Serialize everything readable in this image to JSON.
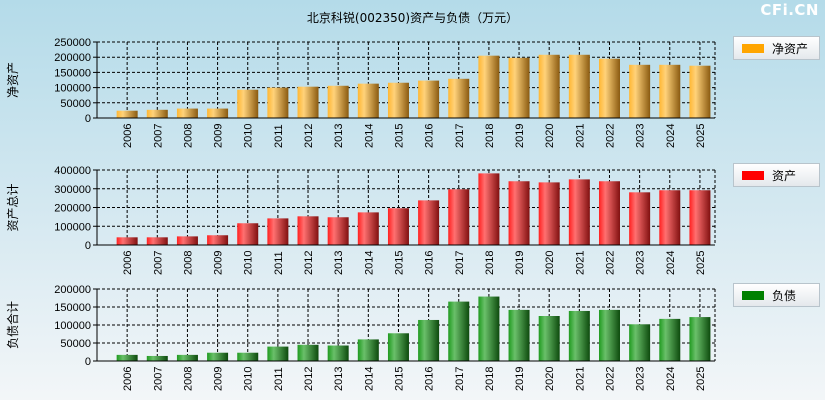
{
  "header": {
    "title": "北京科锐(002350)资产与负债（万元）",
    "watermark": "CFi.CN"
  },
  "colors": {
    "equity": "#ffa500",
    "assets": "#ff0000",
    "liabilities": "#008000"
  },
  "chart_data": [
    {
      "type": "bar",
      "title": "净资产",
      "ylabel": "净资产",
      "legend": "净资产",
      "legend_position": "right",
      "ylim": [
        0,
        250000
      ],
      "yticks": [
        0,
        50000,
        100000,
        150000,
        200000,
        250000
      ],
      "categories": [
        "2006",
        "2007",
        "2008",
        "2009",
        "2010",
        "2011",
        "2012",
        "2013",
        "2014",
        "2015",
        "2016",
        "2017",
        "2018",
        "2019",
        "2020",
        "2021",
        "2022",
        "2023",
        "2024",
        "2025"
      ],
      "values": [
        24000,
        27000,
        31000,
        31000,
        93000,
        100000,
        103000,
        106000,
        113000,
        116000,
        123000,
        129000,
        205000,
        198000,
        208000,
        208000,
        195000,
        175000,
        175000,
        172000
      ]
    },
    {
      "type": "bar",
      "title": "资产",
      "ylabel": "资产总计",
      "legend": "资产",
      "legend_position": "right",
      "ylim": [
        0,
        400000
      ],
      "yticks": [
        0,
        100000,
        200000,
        300000,
        400000
      ],
      "categories": [
        "2006",
        "2007",
        "2008",
        "2009",
        "2010",
        "2011",
        "2012",
        "2013",
        "2014",
        "2015",
        "2016",
        "2017",
        "2018",
        "2019",
        "2020",
        "2021",
        "2022",
        "2023",
        "2024",
        "2025"
      ],
      "values": [
        41000,
        41000,
        46000,
        52000,
        116000,
        142000,
        153000,
        148000,
        174000,
        196000,
        238000,
        297000,
        382000,
        340000,
        334000,
        350000,
        340000,
        281000,
        292000,
        292000
      ]
    },
    {
      "type": "bar",
      "title": "负债",
      "ylabel": "负债合计",
      "legend": "负债",
      "legend_position": "right",
      "ylim": [
        0,
        200000
      ],
      "yticks": [
        0,
        50000,
        100000,
        150000,
        200000
      ],
      "categories": [
        "2006",
        "2007",
        "2008",
        "2009",
        "2010",
        "2011",
        "2012",
        "2013",
        "2014",
        "2015",
        "2016",
        "2017",
        "2018",
        "2019",
        "2020",
        "2021",
        "2022",
        "2023",
        "2024",
        "2025"
      ],
      "values": [
        17000,
        14000,
        17000,
        23000,
        23000,
        40000,
        45000,
        43000,
        60000,
        77000,
        114000,
        165000,
        179000,
        142000,
        125000,
        139000,
        142000,
        102000,
        117000,
        122000
      ]
    }
  ]
}
